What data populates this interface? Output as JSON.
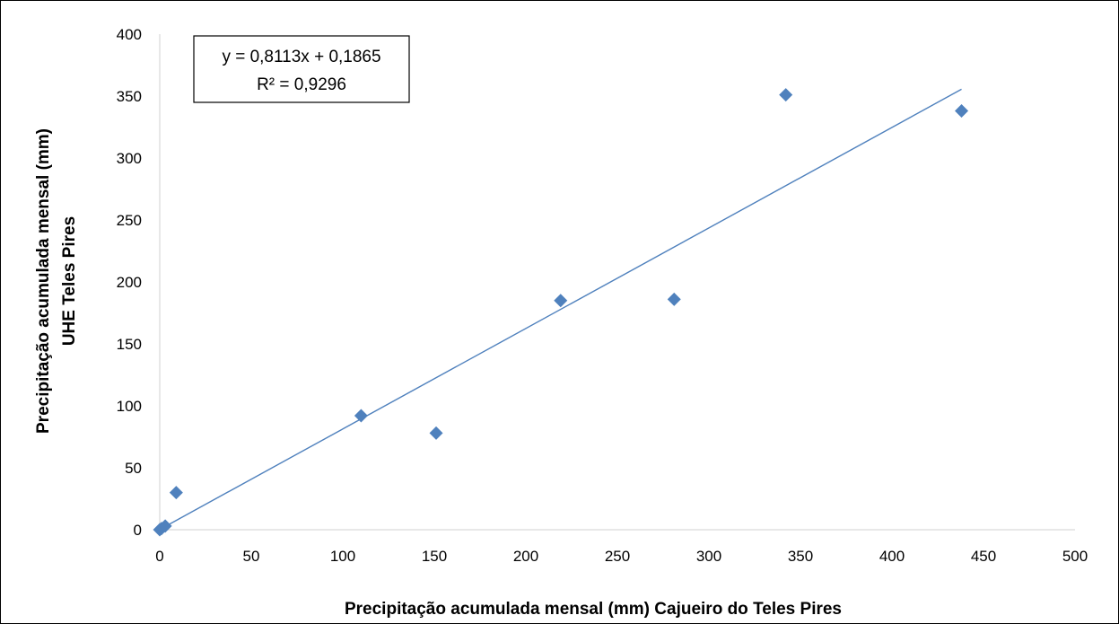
{
  "chart_data": {
    "type": "scatter",
    "title": "",
    "xlabel": "Precipitação acumulada mensal (mm) Cajueiro do Teles Pires",
    "ylabel_lines": [
      "Precipitação acumulada mensal (mm)",
      "UHE Teles Pires"
    ],
    "xlim": [
      0,
      500
    ],
    "ylim": [
      0,
      400
    ],
    "x_ticks": [
      0,
      50,
      100,
      150,
      200,
      250,
      300,
      350,
      400,
      450,
      500
    ],
    "y_ticks": [
      0,
      50,
      100,
      150,
      200,
      250,
      300,
      350,
      400
    ],
    "grid": {
      "x": false,
      "y": false
    },
    "legend": "none",
    "points": [
      {
        "x": 0,
        "y": 0
      },
      {
        "x": 1,
        "y": 1
      },
      {
        "x": 3,
        "y": 3
      },
      {
        "x": 9,
        "y": 30
      },
      {
        "x": 110,
        "y": 92
      },
      {
        "x": 151,
        "y": 78
      },
      {
        "x": 219,
        "y": 185
      },
      {
        "x": 281,
        "y": 186
      },
      {
        "x": 342,
        "y": 351
      },
      {
        "x": 438,
        "y": 338
      }
    ],
    "trendline": {
      "slope": 0.8113,
      "intercept": 0.1865,
      "x_range": [
        0,
        438
      ],
      "equation": "y = 0,8113x + 0,1865",
      "r_squared": "R² = 0,9296"
    },
    "colors": {
      "marker": "#4F81BD",
      "trendline": "#4F81BD",
      "axis": "#D9D9D9",
      "text": "#000000"
    }
  }
}
